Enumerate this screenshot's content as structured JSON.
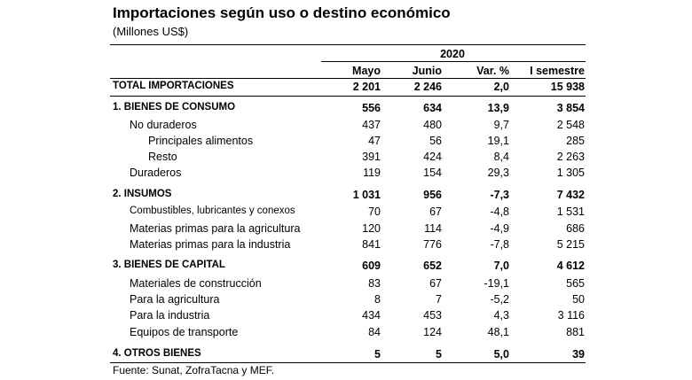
{
  "title": "Importaciones según uso o destino económico",
  "subtitle": "(Millones US$)",
  "year": "2020",
  "columns": [
    "Mayo",
    "Junio",
    "Var. %",
    "I semestre"
  ],
  "rows": [
    {
      "label": "TOTAL IMPORTACIONES",
      "values": [
        "2 201",
        "2 246",
        "2,0",
        "15 938"
      ]
    },
    {
      "label": "1. BIENES DE CONSUMO",
      "values": [
        "556",
        "634",
        "13,9",
        "3 854"
      ]
    },
    {
      "label": "No duraderos",
      "values": [
        "437",
        "480",
        "9,7",
        "2 548"
      ]
    },
    {
      "label": "Principales alimentos",
      "values": [
        "47",
        "56",
        "19,1",
        "285"
      ]
    },
    {
      "label": "Resto",
      "values": [
        "391",
        "424",
        "8,4",
        "2 263"
      ]
    },
    {
      "label": "Duraderos",
      "values": [
        "119",
        "154",
        "29,3",
        "1 305"
      ]
    },
    {
      "label": "2. INSUMOS",
      "values": [
        "1 031",
        "956",
        "-7,3",
        "7 432"
      ]
    },
    {
      "label": "Combustibles, lubricantes y conexos",
      "values": [
        "70",
        "67",
        "-4,8",
        "1 531"
      ]
    },
    {
      "label": "Materias primas para la agricultura",
      "values": [
        "120",
        "114",
        "-4,9",
        "686"
      ]
    },
    {
      "label": "Materias primas para la industria",
      "values": [
        "841",
        "776",
        "-7,8",
        "5 215"
      ]
    },
    {
      "label": "3. BIENES DE CAPITAL",
      "values": [
        "609",
        "652",
        "7,0",
        "4 612"
      ]
    },
    {
      "label": "Materiales de construcción",
      "values": [
        "83",
        "67",
        "-19,1",
        "565"
      ]
    },
    {
      "label": "Para la agricultura",
      "values": [
        "8",
        "7",
        "-5,2",
        "50"
      ]
    },
    {
      "label": "Para la industria",
      "values": [
        "434",
        "453",
        "4,3",
        "3 116"
      ]
    },
    {
      "label": "Equipos de transporte",
      "values": [
        "84",
        "124",
        "48,1",
        "881"
      ]
    },
    {
      "label": "4. OTROS BIENES",
      "values": [
        "5",
        "5",
        "5,0",
        "39"
      ]
    }
  ],
  "footer": "Fuente: Sunat, ZofraTacna y MEF."
}
